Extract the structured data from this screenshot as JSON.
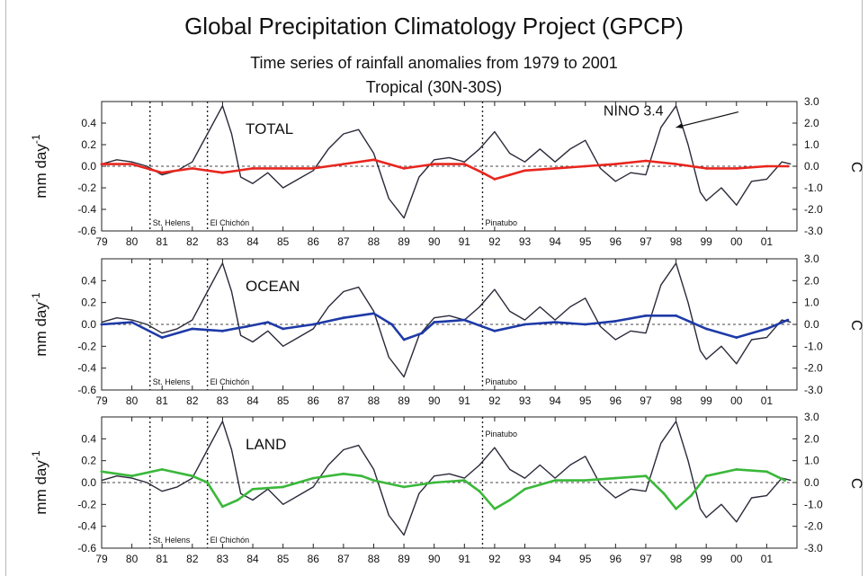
{
  "header": {
    "title": "Global Precipitation Climatology Project (GPCP)",
    "subtitle": "Time series of rainfall anomalies from 1979 to 2001",
    "region": "Tropical (30N-30S)"
  },
  "chart_data": [
    {
      "type": "line",
      "panel": "TOTAL",
      "ylabel": "mm day",
      "ylabel_sup": "-1",
      "y2label": "C",
      "xlim": [
        1979,
        2002
      ],
      "ylim": [
        -0.6,
        0.6
      ],
      "y2lim": [
        -3.0,
        3.0
      ],
      "x_ticks": [
        "79",
        "80",
        "81",
        "82",
        "83",
        "84",
        "85",
        "86",
        "87",
        "88",
        "89",
        "90",
        "91",
        "92",
        "93",
        "94",
        "95",
        "96",
        "97",
        "98",
        "99",
        "00",
        "01"
      ],
      "y_ticks": [
        "0.4",
        "0.2",
        "0.0",
        "-0.2",
        "-0.4",
        "-0.6"
      ],
      "y2_ticks": [
        "3.0",
        "2.0",
        "1.0",
        "0.0",
        "-1.0",
        "-2.0",
        "-3.0"
      ],
      "colors": {
        "monthly": "#f08080",
        "smooth": "#e8261f",
        "nino": "#2a2a3a"
      },
      "events": [
        {
          "x": 1980.6,
          "label": "St. Helens",
          "label_pos": "bottom"
        },
        {
          "x": 1982.5,
          "label": "El Chichón",
          "label_pos": "bottom"
        },
        {
          "x": 1991.6,
          "label": "Pinatubo",
          "label_pos": "bottom"
        }
      ],
      "annotations": [
        {
          "text": "NINO 3.4",
          "x": 1995.6,
          "y": 0.47,
          "arrow_to": [
            1998.0,
            0.36
          ]
        }
      ],
      "series": [
        {
          "values": [
            [
              1979.0,
              0.02
            ],
            [
              1980.0,
              0.02
            ],
            [
              1981.0,
              -0.06
            ],
            [
              1982.0,
              -0.02
            ],
            [
              1983.0,
              -0.06
            ],
            [
              1984.0,
              -0.02
            ],
            [
              1985.0,
              -0.02
            ],
            [
              1986.0,
              -0.02
            ],
            [
              1987.0,
              0.02
            ],
            [
              1988.0,
              0.06
            ],
            [
              1989.0,
              -0.02
            ],
            [
              1990.0,
              0.02
            ],
            [
              1991.0,
              0.02
            ],
            [
              1991.6,
              -0.06
            ],
            [
              1992.0,
              -0.12
            ],
            [
              1992.5,
              -0.08
            ],
            [
              1993.0,
              -0.04
            ],
            [
              1994.0,
              -0.02
            ],
            [
              1995.0,
              0.0
            ],
            [
              1996.0,
              0.02
            ],
            [
              1997.0,
              0.05
            ],
            [
              1998.0,
              0.02
            ],
            [
              1999.0,
              -0.02
            ],
            [
              2000.0,
              -0.02
            ],
            [
              2001.0,
              0.0
            ],
            [
              2001.7,
              0.0
            ]
          ]
        }
      ],
      "nino34": [
        [
          1979.0,
          0.1
        ],
        [
          1979.5,
          0.3
        ],
        [
          1980.0,
          0.2
        ],
        [
          1980.5,
          0.0
        ],
        [
          1981.0,
          -0.4
        ],
        [
          1981.5,
          -0.2
        ],
        [
          1982.0,
          0.2
        ],
        [
          1982.5,
          1.5
        ],
        [
          1983.0,
          2.8
        ],
        [
          1983.3,
          1.5
        ],
        [
          1983.6,
          -0.5
        ],
        [
          1984.0,
          -0.8
        ],
        [
          1984.5,
          -0.3
        ],
        [
          1985.0,
          -1.0
        ],
        [
          1985.5,
          -0.6
        ],
        [
          1986.0,
          -0.2
        ],
        [
          1986.5,
          0.8
        ],
        [
          1987.0,
          1.5
        ],
        [
          1987.5,
          1.7
        ],
        [
          1988.0,
          0.6
        ],
        [
          1988.5,
          -1.5
        ],
        [
          1989.0,
          -2.4
        ],
        [
          1989.5,
          -0.5
        ],
        [
          1990.0,
          0.3
        ],
        [
          1990.5,
          0.4
        ],
        [
          1991.0,
          0.2
        ],
        [
          1991.5,
          0.8
        ],
        [
          1992.0,
          1.6
        ],
        [
          1992.5,
          0.6
        ],
        [
          1993.0,
          0.2
        ],
        [
          1993.5,
          0.8
        ],
        [
          1994.0,
          0.2
        ],
        [
          1994.5,
          0.8
        ],
        [
          1995.0,
          1.2
        ],
        [
          1995.5,
          -0.1
        ],
        [
          1996.0,
          -0.7
        ],
        [
          1996.5,
          -0.3
        ],
        [
          1997.0,
          -0.4
        ],
        [
          1997.5,
          1.8
        ],
        [
          1998.0,
          2.8
        ],
        [
          1998.4,
          1.0
        ],
        [
          1998.8,
          -1.2
        ],
        [
          1999.0,
          -1.6
        ],
        [
          1999.5,
          -1.0
        ],
        [
          2000.0,
          -1.8
        ],
        [
          2000.5,
          -0.7
        ],
        [
          2001.0,
          -0.6
        ],
        [
          2001.5,
          0.2
        ],
        [
          2001.8,
          0.1
        ]
      ]
    },
    {
      "type": "line",
      "panel": "OCEAN",
      "ylabel": "mm day",
      "ylabel_sup": "-1",
      "y2label": "C",
      "xlim": [
        1979,
        2002
      ],
      "ylim": [
        -0.6,
        0.6
      ],
      "y2lim": [
        -3.0,
        3.0
      ],
      "x_ticks": [
        "79",
        "80",
        "81",
        "82",
        "83",
        "84",
        "85",
        "86",
        "87",
        "88",
        "89",
        "90",
        "91",
        "92",
        "93",
        "94",
        "95",
        "96",
        "97",
        "98",
        "99",
        "00",
        "01"
      ],
      "y_ticks": [
        "0.4",
        "0.2",
        "0.0",
        "-0.2",
        "-0.4",
        "-0.6"
      ],
      "y2_ticks": [
        "3.0",
        "2.0",
        "1.0",
        "0.0",
        "-1.0",
        "-2.0",
        "-3.0"
      ],
      "colors": {
        "monthly": "#3a52c8",
        "smooth": "#1e3aa8",
        "nino": "#2a2a3a"
      },
      "events": [
        {
          "x": 1980.6,
          "label": "St. Helens",
          "label_pos": "bottom"
        },
        {
          "x": 1982.5,
          "label": "El Chichón",
          "label_pos": "bottom"
        },
        {
          "x": 1991.6,
          "label": "Pinatubo",
          "label_pos": "bottom"
        }
      ],
      "series": [
        {
          "values": [
            [
              1979.0,
              0.0
            ],
            [
              1980.0,
              0.02
            ],
            [
              1981.0,
              -0.12
            ],
            [
              1982.0,
              -0.04
            ],
            [
              1983.0,
              -0.06
            ],
            [
              1983.8,
              -0.02
            ],
            [
              1984.5,
              0.02
            ],
            [
              1985.0,
              -0.04
            ],
            [
              1986.0,
              0.0
            ],
            [
              1987.0,
              0.06
            ],
            [
              1988.0,
              0.1
            ],
            [
              1988.6,
              0.0
            ],
            [
              1989.0,
              -0.14
            ],
            [
              1989.6,
              -0.08
            ],
            [
              1990.0,
              0.02
            ],
            [
              1991.0,
              0.04
            ],
            [
              1992.0,
              -0.06
            ],
            [
              1993.0,
              0.0
            ],
            [
              1994.0,
              0.02
            ],
            [
              1995.0,
              0.0
            ],
            [
              1996.0,
              0.03
            ],
            [
              1997.0,
              0.08
            ],
            [
              1998.0,
              0.08
            ],
            [
              1999.0,
              -0.04
            ],
            [
              2000.0,
              -0.12
            ],
            [
              2001.0,
              -0.04
            ],
            [
              2001.7,
              0.04
            ]
          ]
        }
      ],
      "nino34": [
        [
          1979.0,
          0.1
        ],
        [
          1979.5,
          0.3
        ],
        [
          1980.0,
          0.2
        ],
        [
          1980.5,
          0.0
        ],
        [
          1981.0,
          -0.4
        ],
        [
          1981.5,
          -0.2
        ],
        [
          1982.0,
          0.2
        ],
        [
          1982.5,
          1.5
        ],
        [
          1983.0,
          2.8
        ],
        [
          1983.3,
          1.5
        ],
        [
          1983.6,
          -0.5
        ],
        [
          1984.0,
          -0.8
        ],
        [
          1984.5,
          -0.3
        ],
        [
          1985.0,
          -1.0
        ],
        [
          1985.5,
          -0.6
        ],
        [
          1986.0,
          -0.2
        ],
        [
          1986.5,
          0.8
        ],
        [
          1987.0,
          1.5
        ],
        [
          1987.5,
          1.7
        ],
        [
          1988.0,
          0.6
        ],
        [
          1988.5,
          -1.5
        ],
        [
          1989.0,
          -2.4
        ],
        [
          1989.5,
          -0.5
        ],
        [
          1990.0,
          0.3
        ],
        [
          1990.5,
          0.4
        ],
        [
          1991.0,
          0.2
        ],
        [
          1991.5,
          0.8
        ],
        [
          1992.0,
          1.6
        ],
        [
          1992.5,
          0.6
        ],
        [
          1993.0,
          0.2
        ],
        [
          1993.5,
          0.8
        ],
        [
          1994.0,
          0.2
        ],
        [
          1994.5,
          0.8
        ],
        [
          1995.0,
          1.2
        ],
        [
          1995.5,
          -0.1
        ],
        [
          1996.0,
          -0.7
        ],
        [
          1996.5,
          -0.3
        ],
        [
          1997.0,
          -0.4
        ],
        [
          1997.5,
          1.8
        ],
        [
          1998.0,
          2.8
        ],
        [
          1998.4,
          1.0
        ],
        [
          1998.8,
          -1.2
        ],
        [
          1999.0,
          -1.6
        ],
        [
          1999.5,
          -1.0
        ],
        [
          2000.0,
          -1.8
        ],
        [
          2000.5,
          -0.7
        ],
        [
          2001.0,
          -0.6
        ],
        [
          2001.5,
          0.2
        ],
        [
          2001.8,
          0.1
        ]
      ]
    },
    {
      "type": "line",
      "panel": "LAND",
      "ylabel": "mm day",
      "ylabel_sup": "-1",
      "y2label": "C",
      "xlim": [
        1979,
        2002
      ],
      "ylim": [
        -0.6,
        0.6
      ],
      "y2lim": [
        -3.0,
        3.0
      ],
      "x_ticks": [
        "79",
        "80",
        "81",
        "82",
        "83",
        "84",
        "85",
        "86",
        "87",
        "88",
        "89",
        "90",
        "91",
        "92",
        "93",
        "94",
        "95",
        "96",
        "97",
        "98",
        "99",
        "00",
        "01"
      ],
      "y_ticks": [
        "0.4",
        "0.2",
        "0.0",
        "-0.2",
        "-0.4",
        "-0.6"
      ],
      "y2_ticks": [
        "3.0",
        "2.0",
        "1.0",
        "0.0",
        "-1.0",
        "-2.0",
        "-3.0"
      ],
      "colors": {
        "monthly": "#66d060",
        "smooth": "#3ab83a",
        "nino": "#2a2a3a"
      },
      "events": [
        {
          "x": 1980.6,
          "label": "St. Helens",
          "label_pos": "bottom"
        },
        {
          "x": 1982.5,
          "label": "El Chichón",
          "label_pos": "bottom"
        },
        {
          "x": 1991.6,
          "label": "Pinatubo",
          "label_pos": "top"
        }
      ],
      "series": [
        {
          "values": [
            [
              1979.0,
              0.1
            ],
            [
              1980.0,
              0.06
            ],
            [
              1981.0,
              0.12
            ],
            [
              1982.0,
              0.06
            ],
            [
              1982.5,
              0.0
            ],
            [
              1983.0,
              -0.22
            ],
            [
              1983.5,
              -0.16
            ],
            [
              1984.0,
              -0.06
            ],
            [
              1985.0,
              -0.04
            ],
            [
              1986.0,
              0.04
            ],
            [
              1987.0,
              0.08
            ],
            [
              1987.6,
              0.06
            ],
            [
              1988.0,
              0.02
            ],
            [
              1989.0,
              -0.04
            ],
            [
              1990.0,
              0.0
            ],
            [
              1991.0,
              0.02
            ],
            [
              1991.5,
              -0.08
            ],
            [
              1992.0,
              -0.24
            ],
            [
              1992.5,
              -0.16
            ],
            [
              1993.0,
              -0.06
            ],
            [
              1994.0,
              0.02
            ],
            [
              1995.0,
              0.02
            ],
            [
              1996.0,
              0.04
            ],
            [
              1997.0,
              0.06
            ],
            [
              1997.6,
              -0.1
            ],
            [
              1998.0,
              -0.24
            ],
            [
              1998.5,
              -0.12
            ],
            [
              1999.0,
              0.06
            ],
            [
              2000.0,
              0.12
            ],
            [
              2001.0,
              0.1
            ],
            [
              2001.6,
              0.02
            ]
          ]
        }
      ],
      "nino34": [
        [
          1979.0,
          0.1
        ],
        [
          1979.5,
          0.3
        ],
        [
          1980.0,
          0.2
        ],
        [
          1980.5,
          0.0
        ],
        [
          1981.0,
          -0.4
        ],
        [
          1981.5,
          -0.2
        ],
        [
          1982.0,
          0.2
        ],
        [
          1982.5,
          1.5
        ],
        [
          1983.0,
          2.8
        ],
        [
          1983.3,
          1.5
        ],
        [
          1983.6,
          -0.5
        ],
        [
          1984.0,
          -0.8
        ],
        [
          1984.5,
          -0.3
        ],
        [
          1985.0,
          -1.0
        ],
        [
          1985.5,
          -0.6
        ],
        [
          1986.0,
          -0.2
        ],
        [
          1986.5,
          0.8
        ],
        [
          1987.0,
          1.5
        ],
        [
          1987.5,
          1.7
        ],
        [
          1988.0,
          0.6
        ],
        [
          1988.5,
          -1.5
        ],
        [
          1989.0,
          -2.4
        ],
        [
          1989.5,
          -0.5
        ],
        [
          1990.0,
          0.3
        ],
        [
          1990.5,
          0.4
        ],
        [
          1991.0,
          0.2
        ],
        [
          1991.5,
          0.8
        ],
        [
          1992.0,
          1.6
        ],
        [
          1992.5,
          0.6
        ],
        [
          1993.0,
          0.2
        ],
        [
          1993.5,
          0.8
        ],
        [
          1994.0,
          0.2
        ],
        [
          1994.5,
          0.8
        ],
        [
          1995.0,
          1.2
        ],
        [
          1995.5,
          -0.1
        ],
        [
          1996.0,
          -0.7
        ],
        [
          1996.5,
          -0.3
        ],
        [
          1997.0,
          -0.4
        ],
        [
          1997.5,
          1.8
        ],
        [
          1998.0,
          2.8
        ],
        [
          1998.4,
          1.0
        ],
        [
          1998.8,
          -1.2
        ],
        [
          1999.0,
          -1.6
        ],
        [
          1999.5,
          -1.0
        ],
        [
          2000.0,
          -1.8
        ],
        [
          2000.5,
          -0.7
        ],
        [
          2001.0,
          -0.6
        ],
        [
          2001.5,
          0.2
        ],
        [
          2001.8,
          0.1
        ]
      ]
    }
  ]
}
